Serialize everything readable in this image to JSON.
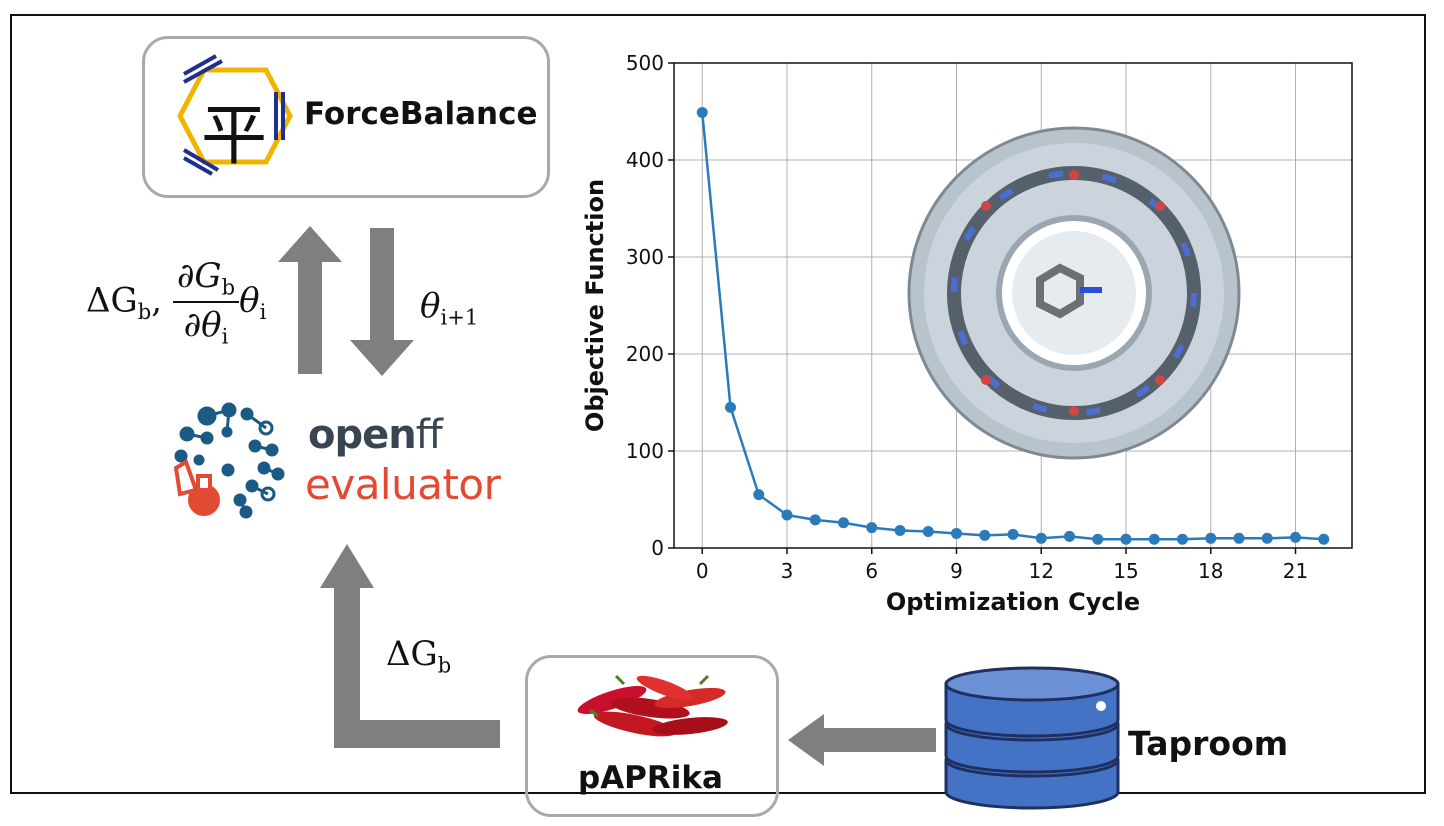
{
  "forcebalance": {
    "name": "ForceBalance",
    "logo_char": "平"
  },
  "equations": {
    "up_prefix": "ΔG",
    "up_prefix_sub": "b",
    "up_frac_num": "∂G",
    "up_frac_num_sub": "b",
    "up_frac_den": "∂θ",
    "up_frac_den_sub": "i",
    "up_suffix": "θ",
    "up_suffix_sub": "i",
    "down_label": "θ",
    "down_label_sub": "i+1",
    "lower_label": "ΔG",
    "lower_label_sub": "b"
  },
  "openff": {
    "line1_bold": "open",
    "line1_thin": "ff",
    "line2": "evaluator"
  },
  "paprika": {
    "name": "pAPRika"
  },
  "taproom": {
    "name": "Taproom"
  },
  "colors": {
    "arrow": "#7f7f7f",
    "series": "#2b7bba",
    "openff_dark": "#3a4553",
    "openff_red": "#e34a33",
    "db_blue": "#4472c4",
    "fb_blue": "#1f2f8f",
    "fb_yellow": "#f0b400"
  },
  "chart_data": {
    "type": "line",
    "xlabel": "Optimization Cycle",
    "ylabel": "Objective Function",
    "xlim": [
      -1,
      23
    ],
    "ylim": [
      0,
      500
    ],
    "xticks": [
      0,
      3,
      6,
      9,
      12,
      15,
      18,
      21
    ],
    "yticks": [
      0,
      100,
      200,
      300,
      400,
      500
    ],
    "grid": true,
    "x": [
      0,
      1,
      2,
      3,
      4,
      5,
      6,
      7,
      8,
      9,
      10,
      11,
      12,
      13,
      14,
      15,
      16,
      17,
      18,
      19,
      20,
      21,
      22
    ],
    "values": [
      449,
      145,
      55,
      34,
      29,
      26,
      21,
      18,
      17,
      15,
      13,
      14,
      10,
      12,
      9,
      9,
      9,
      9,
      10,
      10,
      10,
      11,
      9
    ]
  }
}
